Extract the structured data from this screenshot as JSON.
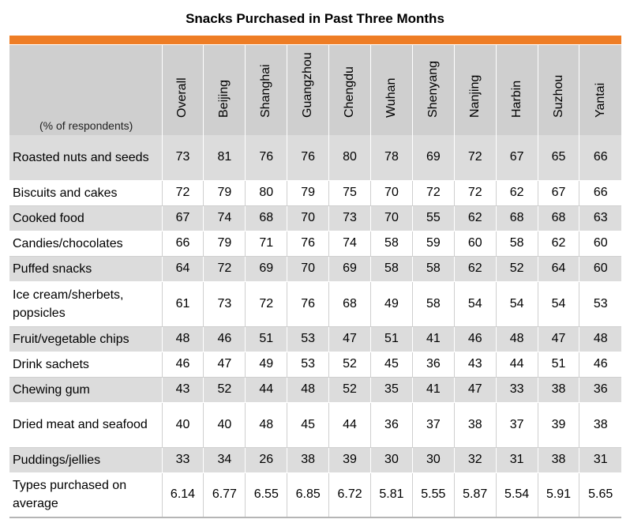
{
  "chart_data": {
    "type": "table",
    "title": "Snacks Purchased in Past Three Months",
    "unit_label": "(% of respondents)",
    "columns": [
      "Overall",
      "Beijing",
      "Shanghai",
      "Guangzhou",
      "Chengdu",
      "Wuhan",
      "Shenyang",
      "Nanjing",
      "Harbin",
      "Suzhou",
      "Yantai"
    ],
    "rows": [
      {
        "label": "Roasted nuts and seeds",
        "values": [
          "73",
          "81",
          "76",
          "76",
          "80",
          "78",
          "69",
          "72",
          "67",
          "65",
          "66"
        ]
      },
      {
        "label": "Biscuits and cakes",
        "values": [
          "72",
          "79",
          "80",
          "79",
          "75",
          "70",
          "72",
          "72",
          "62",
          "67",
          "66"
        ]
      },
      {
        "label": "Cooked food",
        "values": [
          "67",
          "74",
          "68",
          "70",
          "73",
          "70",
          "55",
          "62",
          "68",
          "68",
          "63"
        ]
      },
      {
        "label": "Candies/chocolates",
        "values": [
          "66",
          "79",
          "71",
          "76",
          "74",
          "58",
          "59",
          "60",
          "58",
          "62",
          "60"
        ]
      },
      {
        "label": "Puffed snacks",
        "values": [
          "64",
          "72",
          "69",
          "70",
          "69",
          "58",
          "58",
          "62",
          "52",
          "64",
          "60"
        ]
      },
      {
        "label": "Ice cream/sherbets, popsicles",
        "values": [
          "61",
          "73",
          "72",
          "76",
          "68",
          "49",
          "58",
          "54",
          "54",
          "54",
          "53"
        ]
      },
      {
        "label": "Fruit/vegetable chips",
        "values": [
          "48",
          "46",
          "51",
          "53",
          "47",
          "51",
          "41",
          "46",
          "48",
          "47",
          "48"
        ]
      },
      {
        "label": "Drink sachets",
        "values": [
          "46",
          "47",
          "49",
          "53",
          "52",
          "45",
          "36",
          "43",
          "44",
          "51",
          "46"
        ]
      },
      {
        "label": "Chewing gum",
        "values": [
          "43",
          "52",
          "44",
          "48",
          "52",
          "35",
          "41",
          "47",
          "33",
          "38",
          "36"
        ]
      },
      {
        "label": "Dried meat and seafood",
        "values": [
          "40",
          "40",
          "48",
          "45",
          "44",
          "36",
          "37",
          "38",
          "37",
          "39",
          "38"
        ]
      },
      {
        "label": "Puddings/jellies",
        "values": [
          "33",
          "34",
          "26",
          "38",
          "39",
          "30",
          "30",
          "32",
          "31",
          "38",
          "31"
        ]
      },
      {
        "label": "Types purchased on average",
        "values": [
          "6.14",
          "6.77",
          "6.55",
          "6.85",
          "6.72",
          "5.81",
          "5.55",
          "5.87",
          "5.54",
          "5.91",
          "5.65"
        ]
      }
    ]
  }
}
